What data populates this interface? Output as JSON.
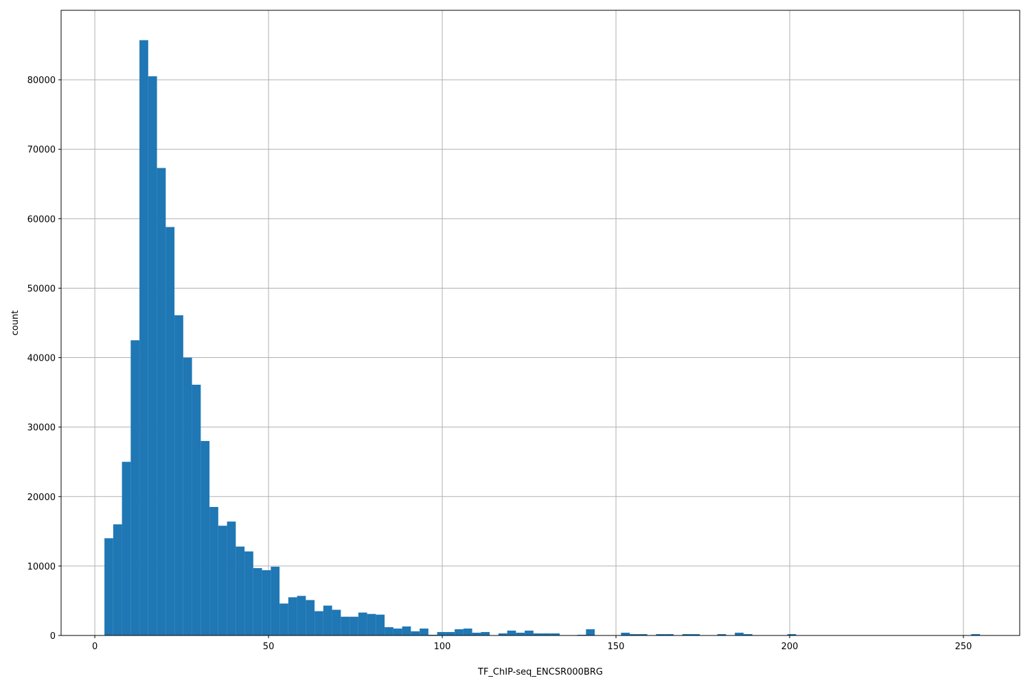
{
  "chart_data": {
    "type": "bar",
    "subtype": "histogram",
    "xlabel": "TF_ChIP-seq_ENCSR000BRG",
    "ylabel": "count",
    "xlim": [
      -9.7,
      266.2
    ],
    "ylim": [
      0,
      90000
    ],
    "grid": true,
    "bar_color": "#1f77b4",
    "bin_start": 2.77,
    "bin_width": 2.52,
    "xticks": [
      "0",
      "50",
      "100",
      "150",
      "200",
      "250"
    ],
    "xtick_values": [
      0,
      50,
      100,
      150,
      200,
      250
    ],
    "yticks": [
      "0",
      "10000",
      "20000",
      "30000",
      "40000",
      "50000",
      "60000",
      "70000",
      "80000"
    ],
    "ytick_values": [
      0,
      10000,
      20000,
      30000,
      40000,
      50000,
      60000,
      70000,
      80000
    ],
    "values": [
      14000,
      16000,
      25000,
      42500,
      85700,
      80500,
      67300,
      58800,
      46100,
      40000,
      36100,
      28000,
      18500,
      15800,
      16400,
      12800,
      12100,
      9700,
      9400,
      9900,
      4600,
      5500,
      5700,
      5100,
      3500,
      4300,
      3700,
      2700,
      2700,
      3300,
      3100,
      3000,
      1200,
      1000,
      1300,
      600,
      1000,
      100,
      500,
      500,
      900,
      1000,
      400,
      500,
      0,
      300,
      700,
      400,
      700,
      300,
      300,
      300,
      0,
      0,
      100,
      900,
      0,
      0,
      0,
      400,
      200,
      200,
      0,
      200,
      200,
      0,
      200,
      200,
      0,
      0,
      200,
      0,
      400,
      200,
      0,
      0,
      0,
      0,
      200,
      0,
      0,
      0,
      0,
      0,
      0,
      0,
      0,
      0,
      0,
      0,
      0,
      0,
      0,
      0,
      0,
      0,
      0,
      0,
      0,
      200
    ]
  }
}
